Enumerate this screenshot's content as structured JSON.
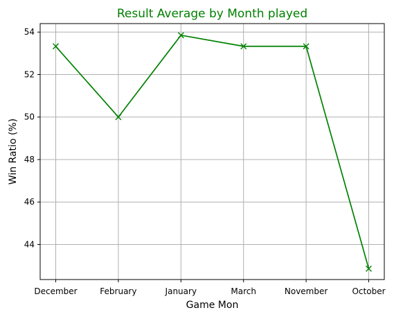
{
  "chart_data": {
    "type": "line",
    "title": "Result Average by Month played",
    "xlabel": "Game Mon",
    "ylabel": "Win Ratio (%)",
    "categories": [
      "December",
      "February",
      "January",
      "March",
      "November",
      "October"
    ],
    "values": [
      53.33,
      50.0,
      53.85,
      53.33,
      53.33,
      42.86
    ],
    "yticks": [
      44,
      46,
      48,
      50,
      52,
      54
    ],
    "ylim": [
      42.35,
      54.4
    ],
    "grid": true,
    "marker": "x",
    "colors": {
      "title": "#008000",
      "line": "#008000",
      "grid": "#b0b0b0",
      "axis": "#000000"
    }
  }
}
